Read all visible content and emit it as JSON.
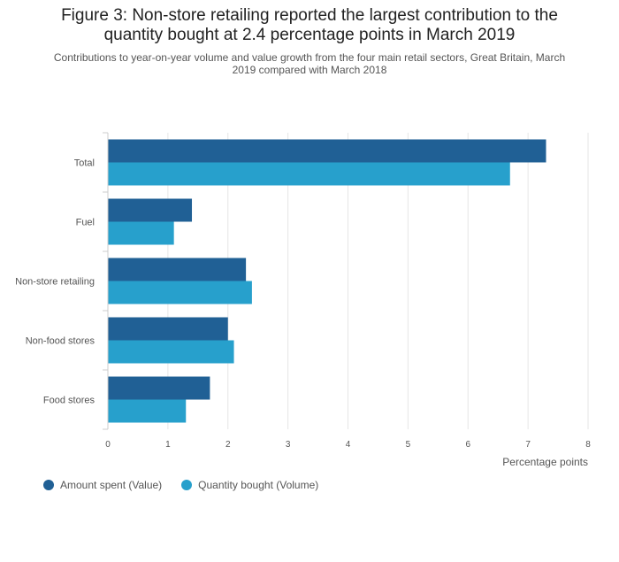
{
  "chart_data": {
    "type": "bar",
    "orientation": "horizontal",
    "title": "Figure 3: Non-store retailing reported the largest contribution to the quantity bought at 2.4 percentage points in March 2019",
    "title_lines": [
      "Figure 3: Non-store retailing reported the largest contribution to the",
      "quantity bought at 2.4 percentage points in March 2019"
    ],
    "subtitle": "Contributions to year-on-year volume and value growth from the four main retail sectors, Great Britain, March 2019 compared with March 2018",
    "subtitle_lines": [
      "Contributions to year-on-year volume and value growth from the four main retail sectors, Great Britain, March",
      "2019 compared with March 2018"
    ],
    "categories": [
      "Total",
      "Fuel",
      "Non-store retailing",
      "Non-food stores",
      "Food stores"
    ],
    "series": [
      {
        "name": "Amount spent (Value)",
        "color": "#206095",
        "values": [
          7.3,
          1.4,
          2.3,
          2.0,
          1.7
        ]
      },
      {
        "name": "Quantity bought (Volume)",
        "color": "#27a0cc",
        "values": [
          6.7,
          1.1,
          2.4,
          2.1,
          1.3
        ]
      }
    ],
    "xlabel": "Percentage points",
    "ylabel": "",
    "xlim": [
      0,
      8
    ],
    "xticks": [
      "0",
      "1",
      "2",
      "3",
      "4",
      "5",
      "6",
      "7",
      "8"
    ],
    "grid": true,
    "legend_position": "bottom-left"
  }
}
